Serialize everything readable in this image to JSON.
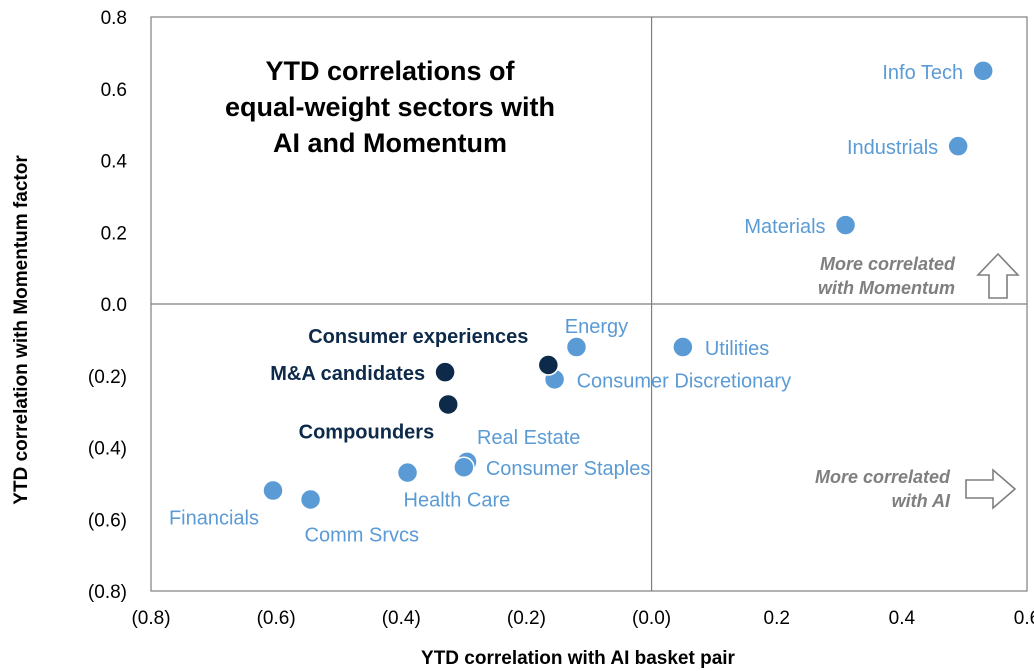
{
  "colors": {
    "sector": "#5b9bd5",
    "sector_label": "#5b9bd5",
    "basket": "#0d2a4a",
    "basket_label": "#0d2a4a",
    "annotation": "#7f7f7f",
    "axis": "#7f7f7f"
  },
  "chart_data": {
    "type": "scatter",
    "title_lines": [
      "YTD correlations of",
      "equal-weight sectors with",
      "AI and Momentum"
    ],
    "xlabel": "YTD correlation with AI basket pair",
    "ylabel": "YTD correlation with Momentum factor",
    "xlim": [
      -0.8,
      0.6
    ],
    "ylim": [
      -0.8,
      0.8
    ],
    "x_ticks": [
      {
        "value": -0.8,
        "label": "(0.8)"
      },
      {
        "value": -0.6,
        "label": "(0.6)"
      },
      {
        "value": -0.4,
        "label": "(0.4)"
      },
      {
        "value": -0.2,
        "label": "(0.2)"
      },
      {
        "value": 0.0,
        "label": "(0.0)"
      },
      {
        "value": 0.2,
        "label": "0.2"
      },
      {
        "value": 0.4,
        "label": "0.4"
      },
      {
        "value": 0.6,
        "label": "0.6"
      }
    ],
    "y_ticks": [
      {
        "value": 0.8,
        "label": "0.8"
      },
      {
        "value": 0.6,
        "label": "0.6"
      },
      {
        "value": 0.4,
        "label": "0.4"
      },
      {
        "value": 0.2,
        "label": "0.2"
      },
      {
        "value": 0.0,
        "label": "0.0"
      },
      {
        "value": -0.2,
        "label": "(0.2)"
      },
      {
        "value": -0.4,
        "label": "(0.4)"
      },
      {
        "value": -0.6,
        "label": "(0.6)"
      },
      {
        "value": -0.8,
        "label": "(0.8)"
      }
    ],
    "grid": false,
    "series": [
      {
        "group": "sector",
        "points": [
          {
            "label": "Info Tech",
            "x": 0.53,
            "y": 0.65,
            "label_pos": "left"
          },
          {
            "label": "Industrials",
            "x": 0.49,
            "y": 0.44,
            "label_pos": "left"
          },
          {
            "label": "Materials",
            "x": 0.31,
            "y": 0.22,
            "label_pos": "left"
          },
          {
            "label": "Utilities",
            "x": 0.05,
            "y": -0.12,
            "label_pos": "right"
          },
          {
            "label": "Energy",
            "x": -0.12,
            "y": -0.12,
            "label_pos": "above"
          },
          {
            "label": "Consumer Discretionary",
            "x": -0.155,
            "y": -0.21,
            "label_pos": "right"
          },
          {
            "label": "Real Estate",
            "x": -0.295,
            "y": -0.44,
            "label_pos": "above-right"
          },
          {
            "label": "Consumer Staples",
            "x": -0.3,
            "y": -0.455,
            "label_pos": "right"
          },
          {
            "label": "Health Care",
            "x": -0.39,
            "y": -0.47,
            "label_pos": "below"
          },
          {
            "label": "Financials",
            "x": -0.605,
            "y": -0.52,
            "label_pos": "below-left"
          },
          {
            "label": "Comm Srvcs",
            "x": -0.545,
            "y": -0.545,
            "label_pos": "below-right"
          }
        ]
      },
      {
        "group": "basket",
        "points": [
          {
            "label": "Consumer experiences",
            "x": -0.165,
            "y": -0.17,
            "label_pos": "upper-left"
          },
          {
            "label": "M&A candidates",
            "x": -0.33,
            "y": -0.19,
            "label_pos": "left"
          },
          {
            "label": "Compounders",
            "x": -0.325,
            "y": -0.28,
            "label_pos": "below-left"
          }
        ]
      }
    ],
    "annotations": [
      {
        "lines": [
          "More correlated",
          "with Momentum"
        ],
        "arrow": "up"
      },
      {
        "lines": [
          "More correlated",
          "with AI"
        ],
        "arrow": "right"
      }
    ]
  }
}
